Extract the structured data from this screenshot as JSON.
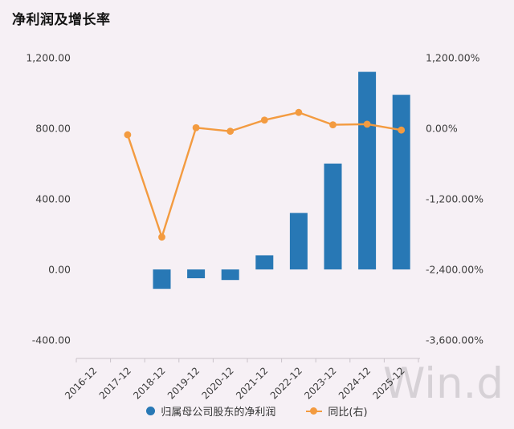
{
  "watermark": {
    "text": "Win.d",
    "color": "#d6d1d6"
  },
  "chart_data": {
    "type": "combo-bar-line",
    "title": "净利润及增长率",
    "categories": [
      "2016-12",
      "2017-12",
      "2018-12",
      "2019-12",
      "2020-12",
      "2021-12",
      "2022-12",
      "2023-12",
      "2024-12",
      "2025-12"
    ],
    "series": [
      {
        "name": "归属母公司股东的净利润",
        "type": "bar",
        "axis": "left",
        "color": "#2878b5",
        "values": [
          null,
          null,
          -110,
          -50,
          -60,
          80,
          320,
          600,
          1120,
          990
        ]
      },
      {
        "name": "同比(右)",
        "type": "line",
        "axis": "right",
        "color": "#f39b40",
        "values": [
          null,
          -110,
          -1850,
          10,
          -50,
          140,
          270,
          60,
          70,
          -30
        ]
      }
    ],
    "left_axis": {
      "tick_labels": [
        "1,200.00",
        "800.00",
        "400.00",
        "0.00",
        "-400.00"
      ],
      "tick_values": [
        1200,
        800,
        400,
        0,
        -400
      ],
      "min": -400,
      "max": 1200
    },
    "right_axis": {
      "tick_labels": [
        "1,200.00%",
        "0.00%",
        "-1,200.00%",
        "-2,400.00%",
        "-3,600.00%"
      ],
      "tick_values": [
        1200,
        0,
        -1200,
        -2400,
        -3600
      ],
      "min": -3600,
      "max": 1200
    },
    "colors": {
      "background": "#f6f0f5",
      "axis_text": "#3d3d3d",
      "axis_line": "#c9c2c9"
    },
    "legend_position": "bottom",
    "grid": false
  }
}
